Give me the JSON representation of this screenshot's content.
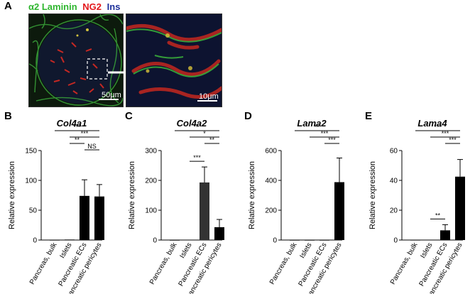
{
  "panels": {
    "A": "A",
    "B": "B",
    "C": "C",
    "D": "D",
    "E": "E"
  },
  "stain_legend": [
    {
      "text": "α2 Laminin",
      "color": "#2fb62f"
    },
    {
      "text": "NG2",
      "color": "#e3171b"
    },
    {
      "text": "Ins",
      "color": "#1c2f9a"
    }
  ],
  "scale_bars": {
    "left": "50μm",
    "right": "10μm"
  },
  "chart_data": [
    {
      "type": "bar",
      "title": "Col4a1",
      "ylabel": "Relative expression",
      "categories": [
        "Pancreas, bulk",
        "Islets",
        "Pancreatic ECs",
        "Pancreatic pericytes"
      ],
      "values": [
        0.2,
        0.8,
        74,
        73
      ],
      "errors": [
        0,
        0,
        27,
        20
      ],
      "bar_colors": [
        "#000000",
        "#000000",
        "#000000",
        "#000000"
      ],
      "ylim": [
        0,
        150
      ],
      "yticks": [
        0,
        50,
        100,
        150
      ],
      "significance": [
        {
          "from": 0,
          "to": 3,
          "label": "***"
        },
        {
          "from": 1,
          "to": 3,
          "label": "***"
        },
        {
          "from": 1,
          "to": 2,
          "label": "**"
        },
        {
          "from": 2,
          "to": 3,
          "label": "NS"
        }
      ]
    },
    {
      "type": "bar",
      "title": "Col4a2",
      "ylabel": "Relative expression",
      "categories": [
        "Pancreas, bulk",
        "Islets",
        "Pancreatic ECs",
        "Pancreatic pericytes"
      ],
      "values": [
        0.2,
        1,
        193,
        43
      ],
      "errors": [
        0,
        0,
        52,
        26
      ],
      "bar_colors": [
        "#000000",
        "#000000",
        "#333333",
        "#000000"
      ],
      "ylim": [
        0,
        300
      ],
      "yticks": [
        0,
        100,
        200,
        300
      ],
      "significance": [
        {
          "from": 0,
          "to": 3,
          "label": "*"
        },
        {
          "from": 1,
          "to": 3,
          "label": "*"
        },
        {
          "from": 2,
          "to": 3,
          "label": "**"
        },
        {
          "from": 1,
          "to": 2,
          "label": "***"
        }
      ]
    },
    {
      "type": "bar",
      "title": "Lama2",
      "ylabel": "Relative expression",
      "categories": [
        "Pancreas, bulk",
        "Islets",
        "Pancreatic ECs",
        "Pancreatic pericytes"
      ],
      "values": [
        0.5,
        0.5,
        0.5,
        388
      ],
      "errors": [
        0,
        0,
        0,
        162
      ],
      "bar_colors": [
        "#000000",
        "#000000",
        "#000000",
        "#000000"
      ],
      "ylim": [
        0,
        600
      ],
      "yticks": [
        0,
        200,
        400,
        600
      ],
      "significance": [
        {
          "from": 0,
          "to": 3,
          "label": "**"
        },
        {
          "from": 1,
          "to": 3,
          "label": "***"
        },
        {
          "from": 2,
          "to": 3,
          "label": "***"
        }
      ]
    },
    {
      "type": "bar",
      "title": "Lama4",
      "ylabel": "Relative expression",
      "categories": [
        "Pancreas, bulk",
        "Islets",
        "Pancreatic ECs",
        "Pancreatic pericytes"
      ],
      "values": [
        0.1,
        0.2,
        6.5,
        42.5
      ],
      "errors": [
        0,
        0,
        3.8,
        11.5
      ],
      "bar_colors": [
        "#000000",
        "#000000",
        "#000000",
        "#000000"
      ],
      "ylim": [
        0,
        60
      ],
      "yticks": [
        0,
        20,
        40,
        60
      ],
      "significance": [
        {
          "from": 0,
          "to": 3,
          "label": "***"
        },
        {
          "from": 1,
          "to": 3,
          "label": "***"
        },
        {
          "from": 2,
          "to": 3,
          "label": "***"
        },
        {
          "from": 1,
          "to": 2,
          "label": "**"
        }
      ]
    }
  ]
}
